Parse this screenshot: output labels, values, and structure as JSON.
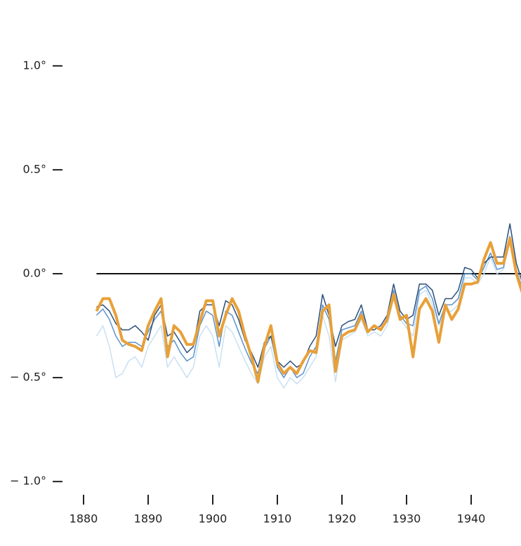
{
  "chart_data": {
    "type": "line",
    "x": [
      1882,
      1883,
      1884,
      1885,
      1886,
      1887,
      1888,
      1889,
      1890,
      1891,
      1892,
      1893,
      1894,
      1895,
      1896,
      1897,
      1898,
      1899,
      1900,
      1901,
      1902,
      1903,
      1904,
      1905,
      1906,
      1907,
      1908,
      1909,
      1910,
      1911,
      1912,
      1913,
      1914,
      1915,
      1916,
      1917,
      1918,
      1919,
      1920,
      1921,
      1922,
      1923,
      1924,
      1925,
      1926,
      1927,
      1928,
      1929,
      1930,
      1931,
      1932,
      1933,
      1934,
      1935,
      1936,
      1937,
      1938,
      1939,
      1940,
      1941,
      1942,
      1943,
      1944,
      1945,
      1946,
      1947,
      1948
    ],
    "series": [
      {
        "color": "#c9e0f3",
        "width": 1.5,
        "values": [
          -0.3,
          -0.25,
          -0.35,
          -0.5,
          -0.48,
          -0.42,
          -0.4,
          -0.45,
          -0.35,
          -0.3,
          -0.25,
          -0.45,
          -0.4,
          -0.45,
          -0.5,
          -0.45,
          -0.3,
          -0.25,
          -0.3,
          -0.45,
          -0.25,
          -0.28,
          -0.35,
          -0.42,
          -0.48,
          -0.53,
          -0.4,
          -0.35,
          -0.5,
          -0.55,
          -0.5,
          -0.53,
          -0.5,
          -0.45,
          -0.4,
          -0.2,
          -0.3,
          -0.52,
          -0.32,
          -0.3,
          -0.28,
          -0.22,
          -0.3,
          -0.28,
          -0.3,
          -0.25,
          -0.12,
          -0.22,
          -0.26,
          -0.3,
          -0.1,
          -0.08,
          -0.15,
          -0.25,
          -0.18,
          -0.18,
          -0.15,
          -0.02,
          -0.02,
          -0.05,
          0.0,
          0.08,
          0.0,
          0.02,
          0.15,
          0.0,
          -0.1
        ]
      },
      {
        "color": "#5b93cc",
        "width": 1.5,
        "values": [
          -0.2,
          -0.17,
          -0.22,
          -0.3,
          -0.35,
          -0.33,
          -0.33,
          -0.35,
          -0.28,
          -0.22,
          -0.18,
          -0.35,
          -0.32,
          -0.38,
          -0.42,
          -0.4,
          -0.25,
          -0.18,
          -0.2,
          -0.35,
          -0.18,
          -0.2,
          -0.28,
          -0.36,
          -0.43,
          -0.48,
          -0.36,
          -0.3,
          -0.45,
          -0.5,
          -0.45,
          -0.5,
          -0.48,
          -0.4,
          -0.35,
          -0.15,
          -0.22,
          -0.42,
          -0.27,
          -0.26,
          -0.25,
          -0.18,
          -0.28,
          -0.25,
          -0.27,
          -0.23,
          -0.08,
          -0.2,
          -0.24,
          -0.25,
          -0.08,
          -0.06,
          -0.12,
          -0.24,
          -0.15,
          -0.15,
          -0.12,
          0.0,
          0.0,
          -0.03,
          0.03,
          0.1,
          0.02,
          0.03,
          0.18,
          0.02,
          -0.08
        ]
      },
      {
        "color": "#2b4f7c",
        "width": 1.5,
        "values": [
          -0.16,
          -0.15,
          -0.18,
          -0.24,
          -0.27,
          -0.27,
          -0.25,
          -0.28,
          -0.32,
          -0.2,
          -0.15,
          -0.3,
          -0.28,
          -0.33,
          -0.38,
          -0.35,
          -0.18,
          -0.15,
          -0.15,
          -0.25,
          -0.13,
          -0.15,
          -0.22,
          -0.32,
          -0.38,
          -0.45,
          -0.33,
          -0.3,
          -0.42,
          -0.45,
          -0.42,
          -0.45,
          -0.43,
          -0.35,
          -0.3,
          -0.1,
          -0.2,
          -0.35,
          -0.25,
          -0.23,
          -0.22,
          -0.15,
          -0.27,
          -0.27,
          -0.25,
          -0.2,
          -0.05,
          -0.18,
          -0.22,
          -0.2,
          -0.05,
          -0.05,
          -0.08,
          -0.2,
          -0.12,
          -0.12,
          -0.08,
          0.03,
          0.02,
          -0.02,
          0.05,
          0.08,
          0.08,
          0.08,
          0.24,
          0.05,
          -0.05
        ]
      },
      {
        "color": "#e8a038",
        "width": 4,
        "values": [
          -0.18,
          -0.12,
          -0.12,
          -0.2,
          -0.32,
          -0.34,
          -0.35,
          -0.37,
          -0.25,
          -0.18,
          -0.12,
          -0.4,
          -0.25,
          -0.28,
          -0.34,
          -0.34,
          -0.23,
          -0.13,
          -0.13,
          -0.3,
          -0.2,
          -0.12,
          -0.18,
          -0.3,
          -0.4,
          -0.52,
          -0.35,
          -0.25,
          -0.43,
          -0.48,
          -0.45,
          -0.48,
          -0.42,
          -0.37,
          -0.38,
          -0.18,
          -0.15,
          -0.47,
          -0.3,
          -0.28,
          -0.27,
          -0.2,
          -0.28,
          -0.25,
          -0.27,
          -0.22,
          -0.1,
          -0.22,
          -0.2,
          -0.4,
          -0.17,
          -0.12,
          -0.18,
          -0.33,
          -0.15,
          -0.22,
          -0.17,
          -0.05,
          -0.05,
          -0.04,
          0.07,
          0.15,
          0.05,
          0.05,
          0.17,
          0.0,
          -0.1
        ]
      }
    ],
    "xlim": [
      1880,
      1948
    ],
    "xticks": [
      1880,
      1890,
      1900,
      1910,
      1920,
      1930,
      1940
    ],
    "ylim": [
      -1.3,
      1.3
    ],
    "yticks": [
      {
        "value": 1.0,
        "label": "1.0°"
      },
      {
        "value": 0.5,
        "label": "0.5°"
      },
      {
        "value": 0.0,
        "label": "0.0°"
      },
      {
        "value": -0.5,
        "label": "− 0.5°"
      },
      {
        "value": -1.0,
        "label": "− 1.0°"
      }
    ],
    "reference_line": 0
  }
}
